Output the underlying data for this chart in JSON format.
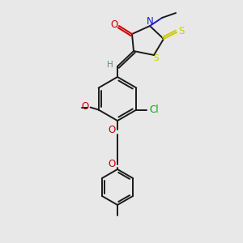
{
  "background_color": "#e8e8e8",
  "colors": {
    "bond": "#1a1a1a",
    "O": "#cc0000",
    "N": "#1a1acc",
    "S": "#cccc00",
    "Cl": "#00aa00",
    "H": "#5a8a8a",
    "C": "#1a1a1a"
  },
  "figsize": [
    3.0,
    3.0
  ],
  "dpi": 100
}
